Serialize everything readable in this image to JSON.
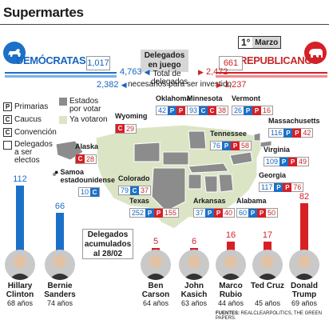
{
  "title": "Supermartes",
  "date": {
    "day": "1°",
    "month": "Marzo"
  },
  "parties": {
    "dem": {
      "name": "DEMÓCRATAS",
      "in_game": "1,017",
      "total": "4,763",
      "needed": "2,382",
      "color": "#1c70c7"
    },
    "rep": {
      "name": "REPUBLICANOS",
      "in_game": "661",
      "total": "2,472",
      "needed": "1,237",
      "color": "#d71f26"
    }
  },
  "center": {
    "in_game_label": "Delegados en juego",
    "total_label": "Total de delegados",
    "needed_label": "necesarios para ser investido"
  },
  "legend": {
    "primarias": "Primarias",
    "caucus": "Caucus",
    "convencion": "Convención",
    "delegados_electos": "Delegados a ser electos",
    "por_votar": "Estados por votar",
    "ya_votaron": "Ya votaron"
  },
  "states": [
    {
      "name": "Oklahoma",
      "dem": "42",
      "dem_type": "P",
      "rep": "43",
      "rep_type": "P"
    },
    {
      "name": "Minnesota",
      "dem": "93",
      "dem_type": "C",
      "rep": "38",
      "rep_type": "C"
    },
    {
      "name": "Vermont",
      "dem": "26",
      "dem_type": "P",
      "rep": "16",
      "rep_type": "P"
    },
    {
      "name": "Massachusetts",
      "dem": "116",
      "dem_type": "P",
      "rep": "42",
      "rep_type": "P"
    },
    {
      "name": "Wyoming",
      "dem": "",
      "dem_type": "",
      "rep": "29",
      "rep_type": "C"
    },
    {
      "name": "Tennessee",
      "dem": "76",
      "dem_type": "P",
      "rep": "58",
      "rep_type": "P"
    },
    {
      "name": "Alaska",
      "dem": "",
      "dem_type": "",
      "rep": "28",
      "rep_type": "C"
    },
    {
      "name": "Virginia",
      "dem": "109",
      "dem_type": "P",
      "rep": "49",
      "rep_type": "P"
    },
    {
      "name": "Samoa estadounidense",
      "dem": "10",
      "dem_type": "C",
      "rep": "",
      "rep_type": ""
    },
    {
      "name": "Colorado",
      "dem": "79",
      "dem_type": "C",
      "rep": "37",
      "rep_type": ""
    },
    {
      "name": "Georgia",
      "dem": "117",
      "dem_type": "P",
      "rep": "76",
      "rep_type": "P"
    },
    {
      "name": "Texas",
      "dem": "252",
      "dem_type": "P",
      "rep": "155",
      "rep_type": "P"
    },
    {
      "name": "Arkansas",
      "dem": "37",
      "dem_type": "P",
      "rep": "40",
      "rep_type": "P"
    },
    {
      "name": "Alabama",
      "dem": "60",
      "dem_type": "P",
      "rep": "50",
      "rep_type": "P"
    }
  ],
  "accumulated_label": "Delegados acumulados al 28/02",
  "candidates": [
    {
      "name": "Hillary Clinton",
      "age": "68 años",
      "delegates": 112,
      "party": "dem"
    },
    {
      "name": "Bernie Sanders",
      "age": "74 años",
      "delegates": 66,
      "party": "dem"
    },
    {
      "name": "Ben Carson",
      "age": "64 años",
      "delegates": 5,
      "party": "rep"
    },
    {
      "name": "John Kasich",
      "age": "63 años",
      "delegates": 6,
      "party": "rep"
    },
    {
      "name": "Marco Rubio",
      "age": "44 años",
      "delegates": 16,
      "party": "rep"
    },
    {
      "name": "Ted Cruz",
      "age": "45 años",
      "delegates": 17,
      "party": "rep"
    },
    {
      "name": "Donald Trump",
      "age": "69 años",
      "delegates": 82,
      "party": "rep"
    }
  ],
  "sources_label": "FUENTES:",
  "sources": "REALCLEARPOLITICS, THE GREEN PAPERS."
}
